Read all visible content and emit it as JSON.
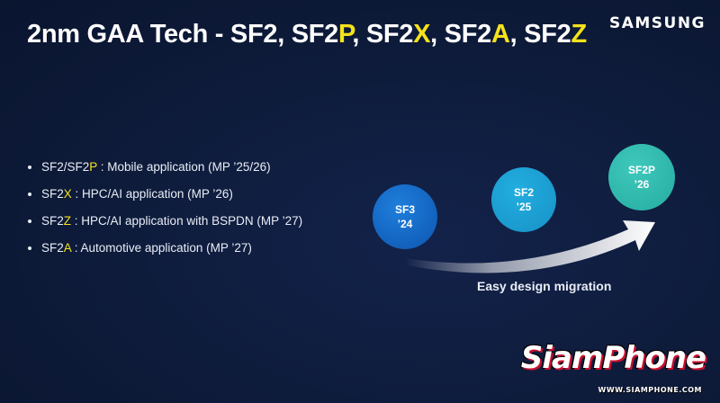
{
  "title": {
    "prefix": "2nm GAA Tech - SF2, SF2",
    "p": "P",
    "sep1": ", SF2",
    "x": "X",
    "sep2": ", SF2",
    "a": "A",
    "sep3": ", SF2",
    "z": "Z"
  },
  "logo": "SAMSUNG",
  "bullets": [
    {
      "pre": "SF2/SF2",
      "hl": "P",
      "post": " : Mobile application (MP ’25/26)"
    },
    {
      "pre": "SF2",
      "hl": "X",
      "post": " : HPC/AI application (MP ’26)"
    },
    {
      "pre": "SF2",
      "hl": "Z",
      "post": " : HPC/AI application with BSPDN (MP ’27)"
    },
    {
      "pre": "SF2",
      "hl": "A",
      "post": " : Automotive application (MP ’27)"
    }
  ],
  "nodes": {
    "sf3": {
      "name": "SF3",
      "year": "’24"
    },
    "sf2": {
      "name": "SF2",
      "year": "’25"
    },
    "sf2p": {
      "name": "SF2P",
      "year": "’26"
    }
  },
  "migration_label": "Easy design migration",
  "watermark": {
    "brand": "SiamPhone",
    "url": "WWW.SIAMPHONE.COM"
  },
  "colors": {
    "background": "#0e1c3d",
    "highlight": "#f5e21a",
    "sf3": "#1262bd",
    "sf2": "#1a98cc",
    "sf2p": "#2cb3a7"
  }
}
